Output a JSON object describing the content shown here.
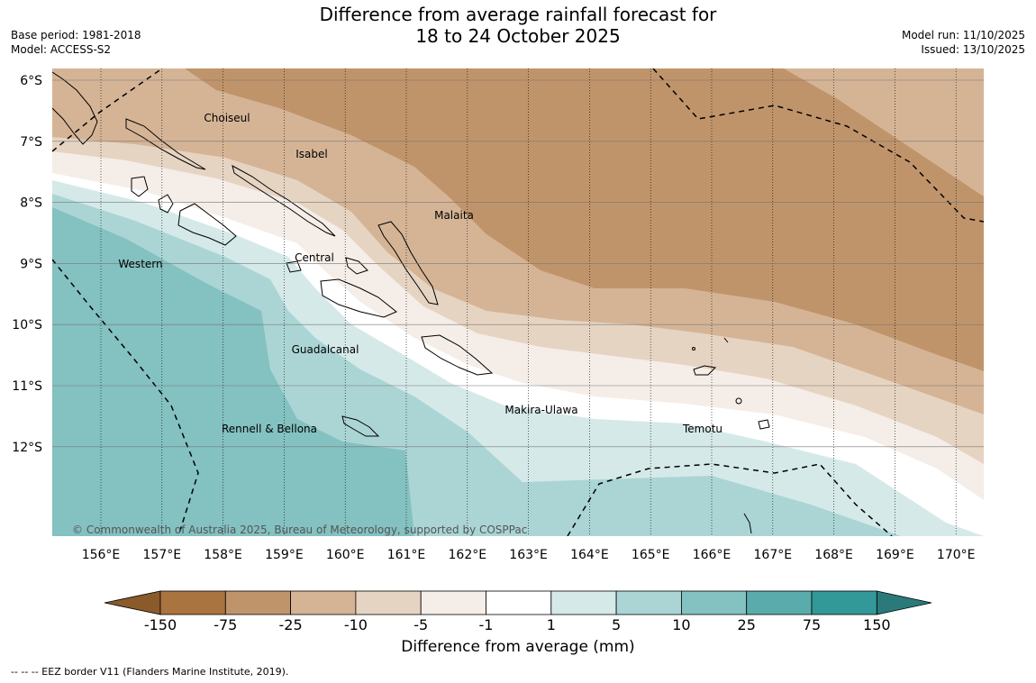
{
  "header": {
    "title_line1": "Difference from average rainfall forecast for",
    "title_line2": "18 to 24 October 2025",
    "base_period": "Base period: 1981-2018",
    "model": "Model: ACCESS-S2",
    "model_run": "Model run: 11/10/2025",
    "issued": "Issued: 13/10/2025"
  },
  "map": {
    "lat_labels": [
      "6°S",
      "7°S",
      "8°S",
      "9°S",
      "10°S",
      "11°S",
      "12°S"
    ],
    "lon_labels": [
      "156°E",
      "157°E",
      "158°E",
      "159°E",
      "160°E",
      "161°E",
      "162°E",
      "163°E",
      "164°E",
      "165°E",
      "166°E",
      "167°E",
      "168°E",
      "169°E",
      "170°E"
    ],
    "province_labels": [
      {
        "name": "Choiseul"
      },
      {
        "name": "Isabel"
      },
      {
        "name": "Malaita"
      },
      {
        "name": "Central"
      },
      {
        "name": "Western"
      },
      {
        "name": "Guadalcanal"
      },
      {
        "name": "Makira-Ulawa"
      },
      {
        "name": "Temotu"
      },
      {
        "name": "Rennell & Bellona"
      }
    ],
    "copyright": "© Commonwealth of Australia 2025, Bureau of Meteorology, supported by COSPPac"
  },
  "colorbar": {
    "title": "Difference from average (mm)",
    "ticks": [
      "-150",
      "-75",
      "-25",
      "-10",
      "-5",
      "-1",
      "1",
      "5",
      "10",
      "25",
      "75",
      "150"
    ],
    "colors": [
      "#a97440",
      "#c0946a",
      "#d5b496",
      "#e6d4c2",
      "#f5ede7",
      "#ffffff",
      "#d5e9e9",
      "#abd5d5",
      "#84c1c1",
      "#5aacac",
      "#339898"
    ],
    "under_color": "#8b5a2b",
    "over_color": "#2a7a7a"
  },
  "footer": {
    "legend_note": "--  --  -- EEZ border V11 (Flanders Marine Institute, 2019)."
  }
}
